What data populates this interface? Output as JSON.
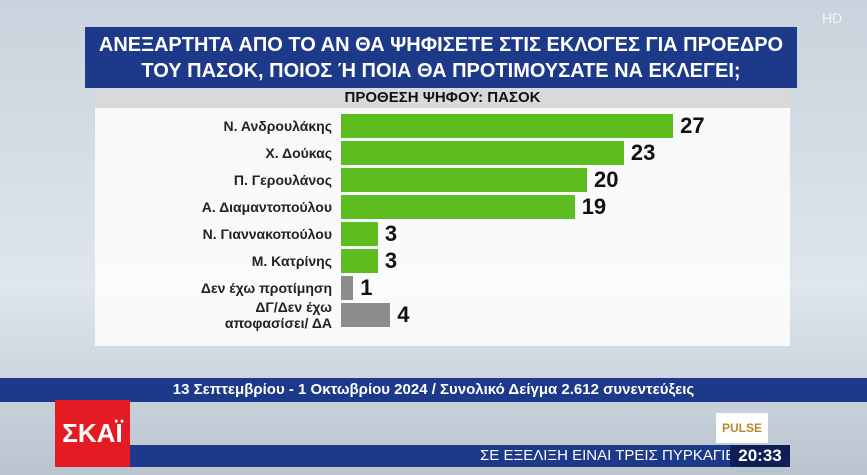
{
  "chart_data": {
    "type": "bar",
    "orientation": "horizontal",
    "title": "ΑΝΕΞΑΡΤΗΤΑ ΑΠΟ ΤΟ ΑΝ ΘΑ ΨΗΦΙΣΕΤΕ ΣΤΙΣ ΕΚΛΟΓΕΣ ΓΙΑ ΠΡΟΕΔΡΟ\nΤΟΥ ΠΑΣΟΚ, ΠΟΙΟΣ Ή ΠΟΙΑ ΘΑ ΠΡΟΤΙΜΟΥΣΑΤΕ ΝΑ ΕΚΛΕΓΕΙ;",
    "subtitle": "ΠΡΟΘΕΣΗ ΨΗΦΟΥ: ΠΑΣΟΚ",
    "categories": [
      "Ν. Ανδρουλάκης",
      "Χ. Δούκας",
      "Π. Γερουλάνος",
      "Α. Διαμαντοπούλου",
      "Ν. Γιαννακοπούλου",
      "Μ. Κατρίνης",
      "Δεν έχω προτίμηση",
      "ΔΓ/Δεν έχω\nαποφασίσει/ ΔΑ"
    ],
    "values": [
      27,
      23,
      20,
      19,
      3,
      3,
      1,
      4
    ],
    "colors": [
      "#5dbd1e",
      "#5dbd1e",
      "#5dbd1e",
      "#5dbd1e",
      "#5dbd1e",
      "#5dbd1e",
      "#8c8c8c",
      "#8c8c8c"
    ],
    "note": "13 Σεπτεμβρίου - 1 Οκτωβρίου 2024 / Συνολικό Δείγμα 2.612 συνεντεύξεις"
  },
  "screen": {
    "channel_logo": "ΣΚΑΪ",
    "hd_badge": "HD",
    "pollster_logo": "PULSE",
    "ticker": "ΣΕ ΕΞΕΛΙΞΗ ΕΙΝΑΙ ΤΡΕΙΣ ΠΥΡΚΑΓΙΕΣ ΣΤΗΝ Η",
    "clock": "20:33"
  }
}
